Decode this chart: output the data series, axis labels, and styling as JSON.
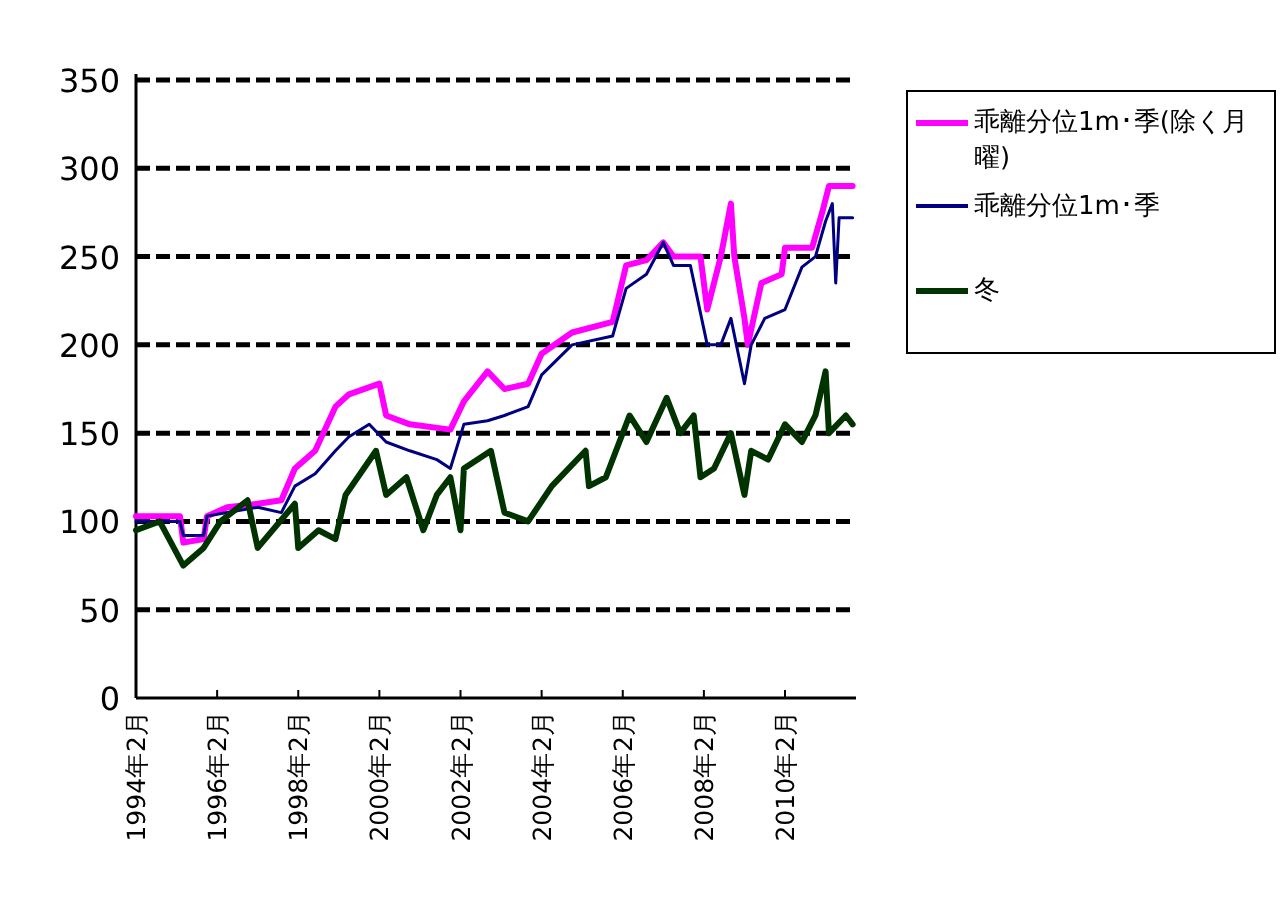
{
  "chart_data": {
    "type": "line",
    "xlim": [
      "1994-02",
      "2011-11"
    ],
    "ylim": [
      0,
      350
    ],
    "xticks": [
      {
        "value": "1994-02",
        "label": "1994年2月"
      },
      {
        "value": "1996-02",
        "label": "1996年2月"
      },
      {
        "value": "1998-02",
        "label": "1998年2月"
      },
      {
        "value": "2000-02",
        "label": "2000年2月"
      },
      {
        "value": "2002-02",
        "label": "2002年2月"
      },
      {
        "value": "2004-02",
        "label": "2004年2月"
      },
      {
        "value": "2006-02",
        "label": "2006年2月"
      },
      {
        "value": "2008-02",
        "label": "2008年2月"
      },
      {
        "value": "2010-02",
        "label": "2010年2月"
      }
    ],
    "yticks": [
      0,
      50,
      100,
      150,
      200,
      250,
      300,
      350
    ],
    "grid": "y",
    "legend": "right",
    "line_style": "solid",
    "marker": "none",
    "series": [
      {
        "name": "乖離分位1m･季(除く月曜)",
        "color": "#ff00ff",
        "x": [
          "1994-02",
          "1995-03",
          "1995-04",
          "1995-10",
          "1995-11",
          "1996-05",
          "1997-02",
          "1997-09",
          "1998-01",
          "1998-07",
          "1999-01",
          "1999-05",
          "2000-02",
          "2000-04",
          "2000-11",
          "2001-11",
          "2002-03",
          "2002-10",
          "2003-03",
          "2003-10",
          "2004-02",
          "2004-11",
          "2005-11",
          "2006-03",
          "2006-09",
          "2007-02",
          "2007-05",
          "2008-01",
          "2008-03",
          "2008-07",
          "2008-10",
          "2008-11",
          "2009-02",
          "2009-03",
          "2009-07",
          "2010-01",
          "2010-02",
          "2010-10",
          "2011-01",
          "2011-03",
          "2011-10"
        ],
        "values": [
          103,
          103,
          88,
          90,
          103,
          108,
          110,
          112,
          130,
          140,
          165,
          172,
          178,
          160,
          155,
          152,
          168,
          185,
          175,
          178,
          195,
          207,
          213,
          245,
          248,
          258,
          250,
          250,
          220,
          250,
          280,
          250,
          215,
          200,
          235,
          240,
          255,
          255,
          275,
          290,
          290
        ]
      },
      {
        "name": "乖離分位1m･季",
        "color": "#000080",
        "x": [
          "1994-02",
          "1995-03",
          "1995-04",
          "1995-10",
          "1995-11",
          "1996-05",
          "1997-02",
          "1997-09",
          "1998-01",
          "1998-07",
          "1999-01",
          "1999-05",
          "1999-11",
          "2000-04",
          "2000-11",
          "2001-07",
          "2001-11",
          "2002-03",
          "2002-10",
          "2003-03",
          "2003-10",
          "2004-02",
          "2004-11",
          "2005-11",
          "2006-03",
          "2006-09",
          "2007-02",
          "2007-05",
          "2007-10",
          "2008-01",
          "2008-03",
          "2008-07",
          "2008-10",
          "2009-02",
          "2009-04",
          "2009-08",
          "2010-02",
          "2010-07",
          "2010-11",
          "2011-02",
          "2011-04",
          "2011-05",
          "2011-06",
          "2011-10"
        ],
        "values": [
          100,
          100,
          92,
          92,
          103,
          105,
          108,
          105,
          120,
          127,
          140,
          148,
          155,
          145,
          140,
          135,
          130,
          155,
          157,
          160,
          165,
          183,
          200,
          205,
          232,
          240,
          258,
          245,
          245,
          218,
          200,
          200,
          215,
          178,
          200,
          215,
          220,
          244,
          250,
          270,
          280,
          235,
          272,
          272
        ]
      },
      {
        "name": "冬",
        "color": "#003300",
        "x": [
          "1994-02",
          "1994-09",
          "1995-04",
          "1995-10",
          "1996-03",
          "1996-11",
          "1997-02",
          "1998-01",
          "1998-02",
          "1998-08",
          "1999-01",
          "1999-04",
          "2000-01",
          "2000-04",
          "2000-10",
          "2001-03",
          "2001-07",
          "2001-11",
          "2002-02",
          "2002-03",
          "2002-11",
          "2003-03",
          "2003-10",
          "2004-05",
          "2005-03",
          "2005-04",
          "2005-09",
          "2006-04",
          "2006-09",
          "2007-03",
          "2007-07",
          "2007-11",
          "2008-01",
          "2008-05",
          "2008-10",
          "2009-02",
          "2009-04",
          "2009-09",
          "2010-02",
          "2010-07",
          "2010-11",
          "2011-02",
          "2011-03",
          "2011-08",
          "2011-10"
        ],
        "values": [
          95,
          100,
          75,
          85,
          100,
          112,
          85,
          110,
          85,
          95,
          90,
          115,
          140,
          115,
          125,
          95,
          115,
          125,
          95,
          130,
          140,
          105,
          100,
          120,
          140,
          120,
          125,
          160,
          145,
          170,
          150,
          160,
          125,
          130,
          150,
          115,
          140,
          135,
          155,
          145,
          160,
          185,
          150,
          160,
          155
        ]
      }
    ]
  }
}
